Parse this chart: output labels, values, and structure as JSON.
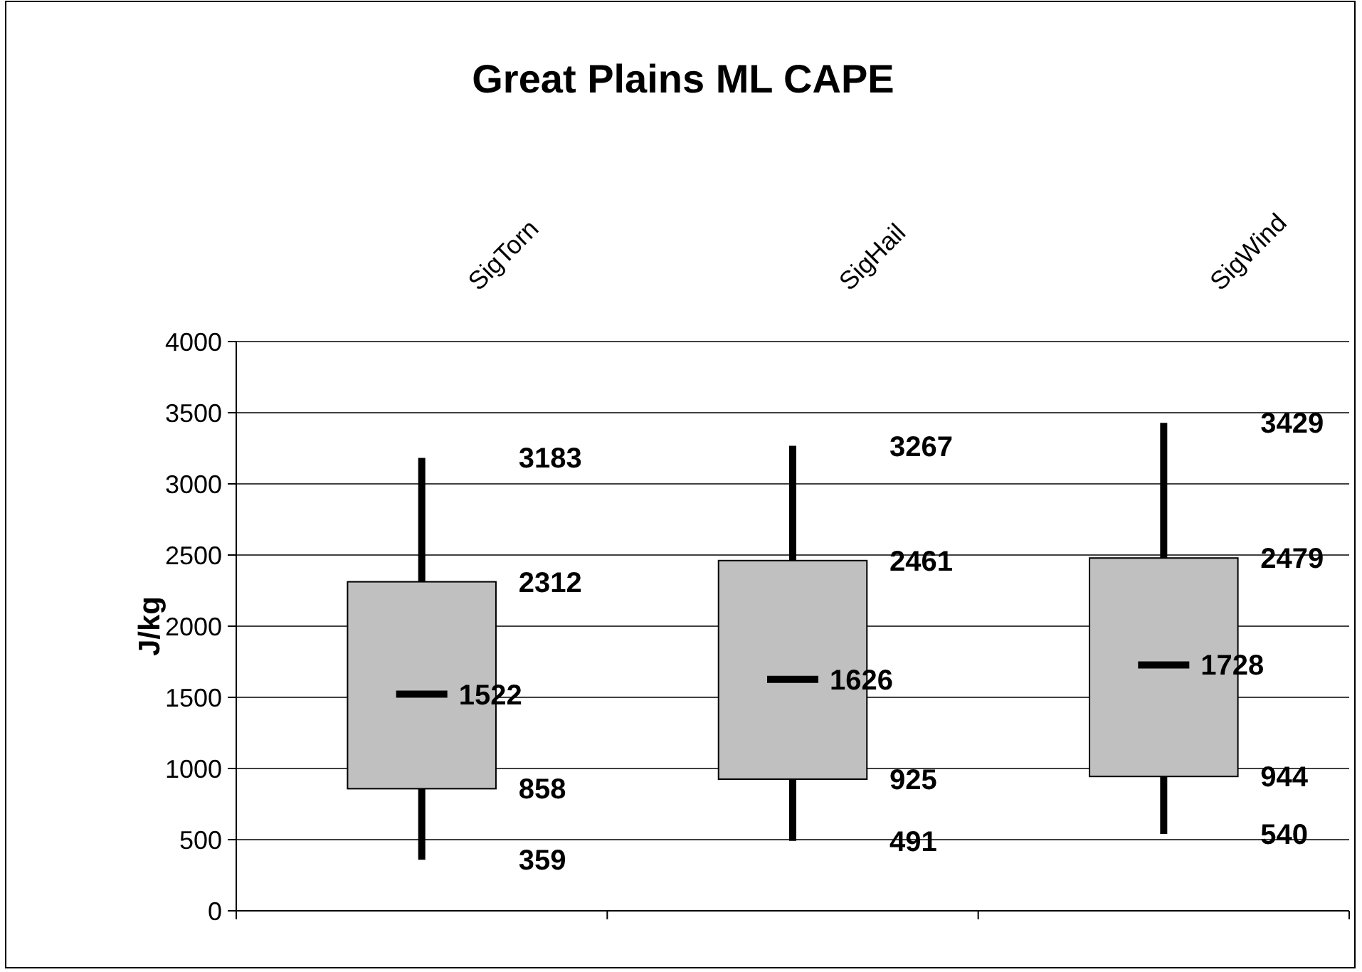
{
  "chart_data": {
    "type": "box",
    "title": "Great Plains ML CAPE",
    "ylabel": "J/kg",
    "categories": [
      "SigTorn",
      "SigHail",
      "SigWind"
    ],
    "boxes": [
      {
        "low": 359,
        "q1": 858,
        "median": 1522,
        "q3": 2312,
        "high": 3183
      },
      {
        "low": 491,
        "q1": 925,
        "median": 1626,
        "q3": 2461,
        "high": 3267
      },
      {
        "low": 540,
        "q1": 944,
        "median": 1728,
        "q3": 2479,
        "high": 3429
      }
    ],
    "color": "#c0c0c0",
    "ylim": [
      0,
      4000
    ],
    "yticks": [
      0,
      500,
      1000,
      1500,
      2000,
      2500,
      3000,
      3500,
      4000
    ],
    "grid": "y",
    "annotations": [
      "3183",
      "2312",
      "1522",
      "858",
      "359",
      "3267",
      "2461",
      "1626",
      "925",
      "491",
      "3429",
      "2479",
      "1728",
      "944",
      "540"
    ]
  }
}
